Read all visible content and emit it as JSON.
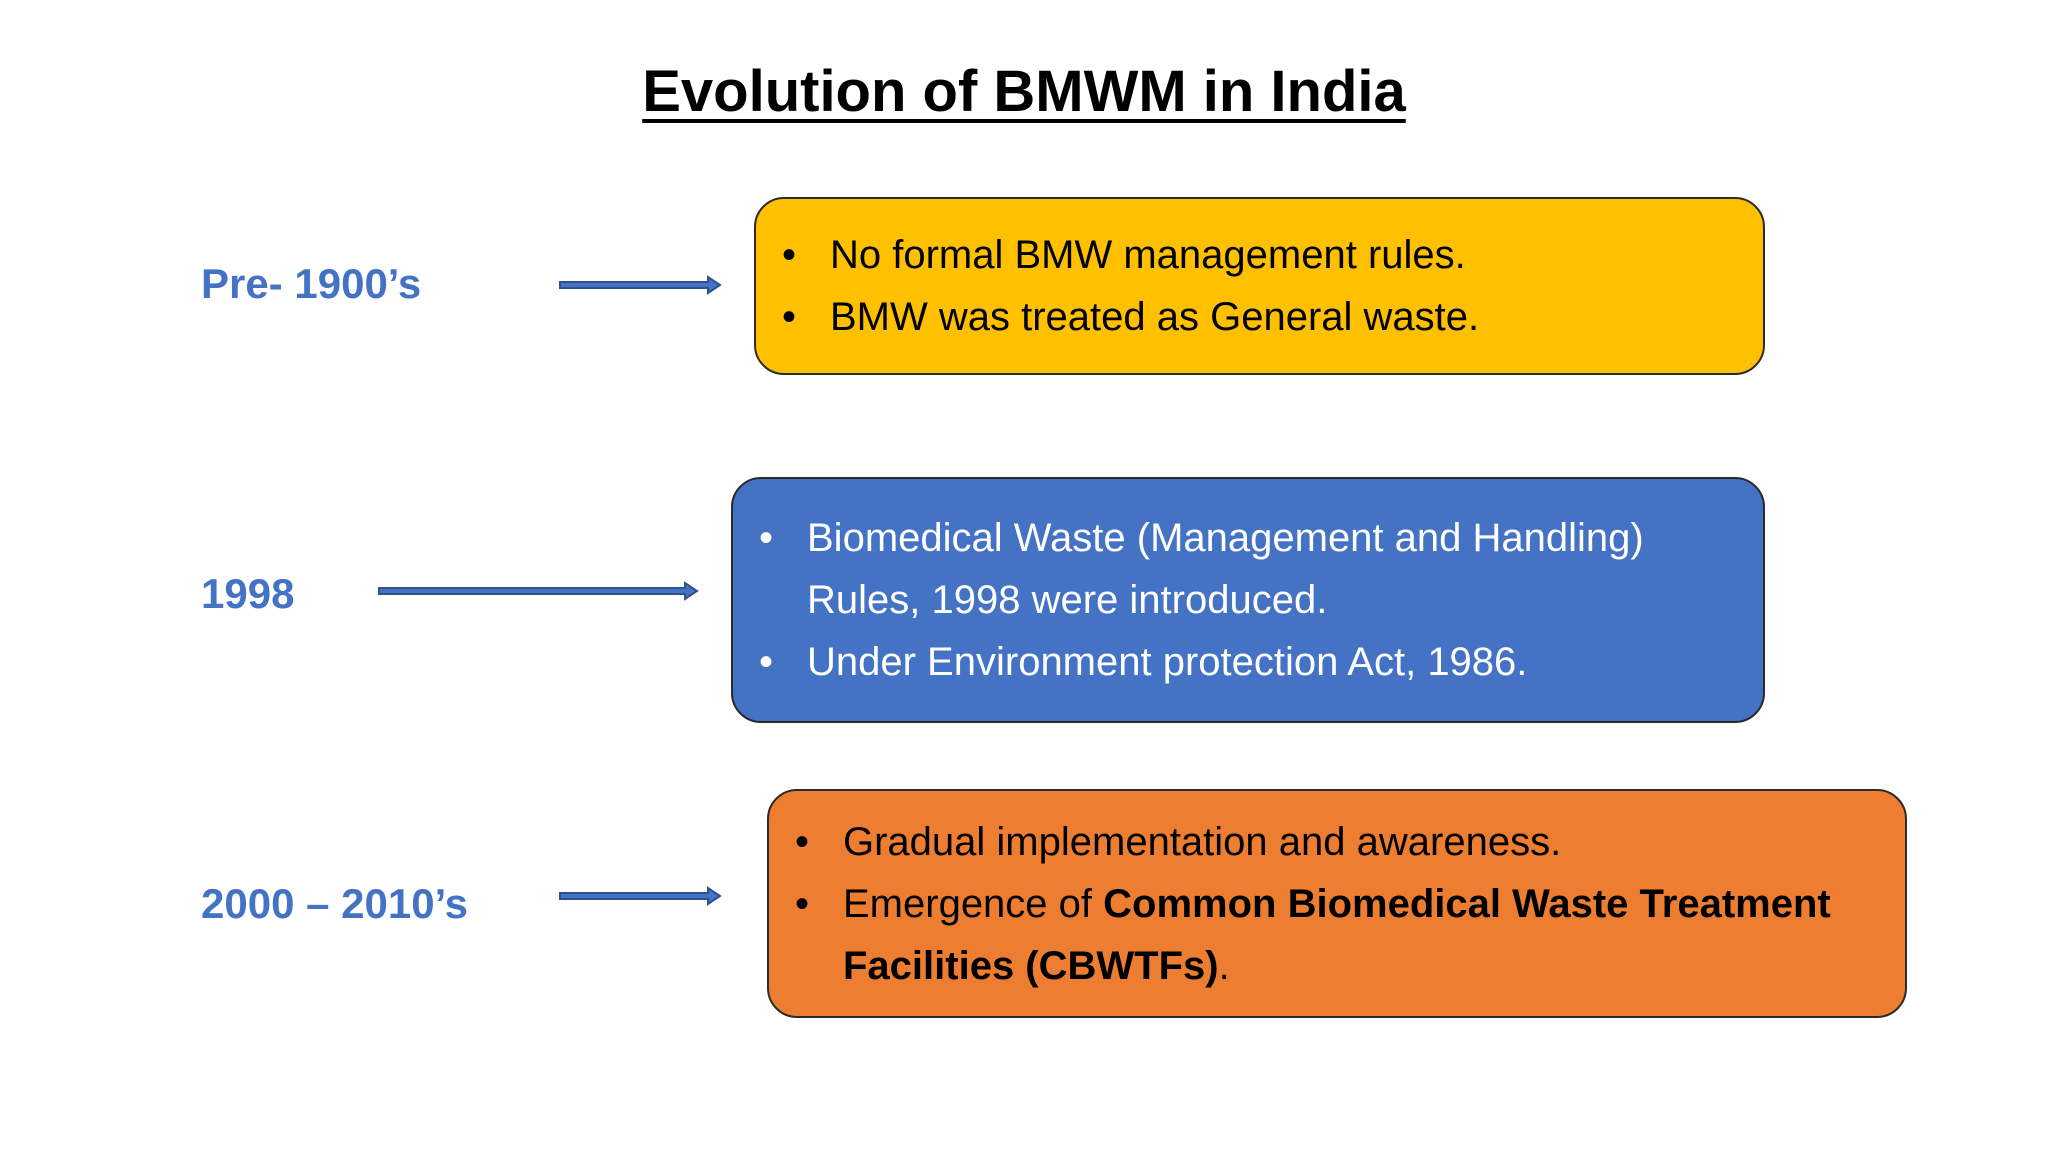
{
  "title": "Evolution of BMWM in India",
  "rows": [
    {
      "label": "Pre- 1900’s",
      "bullets": [
        [
          {
            "text": "No formal BMW management rules."
          }
        ],
        [
          {
            "text": "BMW was treated as General waste."
          }
        ]
      ]
    },
    {
      "label": "1998",
      "bullets": [
        [
          {
            "text": "Biomedical Waste (Management and Handling) Rules, 1998 were introduced."
          }
        ],
        [
          {
            "text": "Under Environment protection Act, 1986."
          }
        ]
      ]
    },
    {
      "label": "2000 – 2010’s",
      "bullets": [
        [
          {
            "text": "Gradual implementation and awareness."
          }
        ],
        [
          {
            "text": "Emergence of "
          },
          {
            "text": "Common Biomedical Waste Treatment Facilities (CBWTFs)",
            "bold": true
          },
          {
            "text": "."
          }
        ]
      ]
    }
  ]
}
